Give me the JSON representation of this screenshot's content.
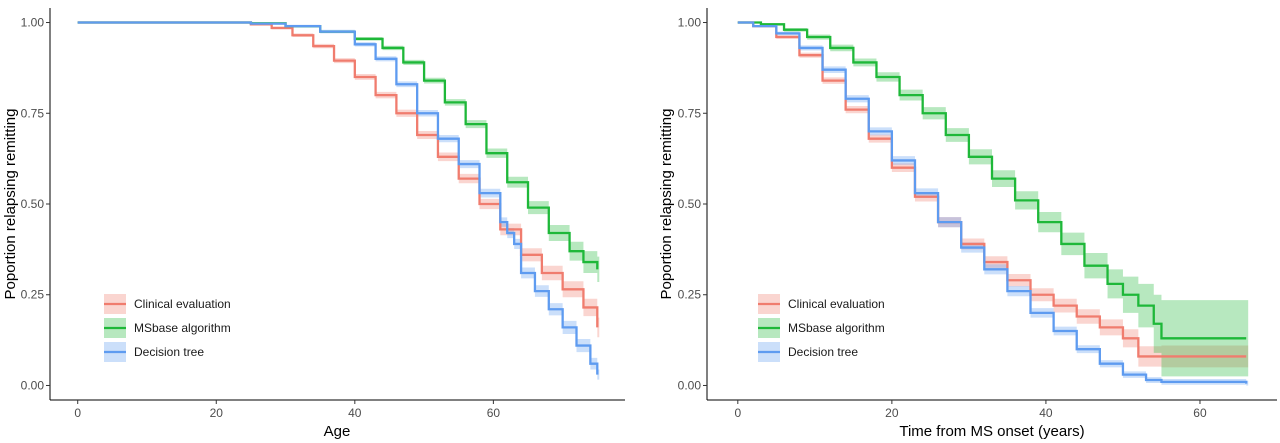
{
  "colors": {
    "clinical": "#F07C6E",
    "msbase": "#1EB839",
    "tree": "#5E9BF0"
  },
  "chart_data": [
    {
      "type": "line",
      "xlabel": "Age",
      "ylabel": "Poportion relapsing remitting",
      "xlim": [
        -4,
        79
      ],
      "ylim": [
        -0.04,
        1.04
      ],
      "x_ticks": [
        0,
        20,
        40,
        60
      ],
      "y_ticks": [
        0.0,
        0.25,
        0.5,
        0.75,
        1.0
      ],
      "x_tick_labels": [
        "0",
        "20",
        "40",
        "60"
      ],
      "y_tick_labels": [
        "0.00",
        "0.25",
        "0.50",
        "0.75",
        "1.00"
      ],
      "grid": false,
      "legend": "bottom-left",
      "series": [
        {
          "name": "Clinical evaluation",
          "color_key": "clinical",
          "x": [
            0,
            20,
            25,
            28,
            31,
            34,
            37,
            40,
            43,
            46,
            49,
            52,
            55,
            58,
            61,
            64,
            67,
            70,
            73,
            75
          ],
          "y": [
            1.0,
            1.0,
            0.995,
            0.985,
            0.965,
            0.935,
            0.895,
            0.85,
            0.8,
            0.75,
            0.69,
            0.63,
            0.57,
            0.5,
            0.43,
            0.36,
            0.31,
            0.265,
            0.215,
            0.16
          ],
          "ci_width": [
            0,
            0,
            0.003,
            0.004,
            0.005,
            0.006,
            0.007,
            0.008,
            0.009,
            0.01,
            0.011,
            0.012,
            0.013,
            0.014,
            0.016,
            0.018,
            0.02,
            0.022,
            0.024,
            0.027
          ]
        },
        {
          "name": "MSbase algorithm",
          "color_key": "msbase",
          "x": [
            0,
            20,
            25,
            30,
            35,
            40,
            44,
            47,
            50,
            53,
            56,
            59,
            62,
            65,
            68,
            71,
            73,
            75
          ],
          "y": [
            1.0,
            1.0,
            0.998,
            0.99,
            0.975,
            0.955,
            0.93,
            0.89,
            0.84,
            0.78,
            0.72,
            0.64,
            0.56,
            0.49,
            0.42,
            0.37,
            0.34,
            0.32
          ],
          "ci_width": [
            0,
            0,
            0.002,
            0.003,
            0.004,
            0.005,
            0.006,
            0.007,
            0.008,
            0.009,
            0.011,
            0.013,
            0.015,
            0.018,
            0.022,
            0.026,
            0.03,
            0.035
          ]
        },
        {
          "name": "Decision tree",
          "color_key": "tree",
          "x": [
            0,
            20,
            25,
            30,
            35,
            40,
            43,
            46,
            49,
            52,
            55,
            58,
            61,
            62,
            63,
            64,
            66,
            68,
            70,
            72,
            74,
            75
          ],
          "y": [
            1.0,
            1.0,
            0.997,
            0.99,
            0.975,
            0.94,
            0.9,
            0.83,
            0.75,
            0.68,
            0.61,
            0.53,
            0.45,
            0.42,
            0.39,
            0.31,
            0.26,
            0.21,
            0.16,
            0.11,
            0.06,
            0.03
          ],
          "ci_width": [
            0,
            0,
            0.003,
            0.004,
            0.005,
            0.006,
            0.007,
            0.008,
            0.009,
            0.01,
            0.011,
            0.012,
            0.013,
            0.014,
            0.014,
            0.015,
            0.016,
            0.017,
            0.018,
            0.018,
            0.016,
            0.014
          ]
        }
      ]
    },
    {
      "type": "line",
      "xlabel": "Time from MS onset (years)",
      "ylabel": "Poportion relapsing remitting",
      "xlim": [
        -4,
        70
      ],
      "ylim": [
        -0.04,
        1.04
      ],
      "x_ticks": [
        0,
        20,
        40,
        60
      ],
      "y_ticks": [
        0.0,
        0.25,
        0.5,
        0.75,
        1.0
      ],
      "x_tick_labels": [
        "0",
        "20",
        "40",
        "60"
      ],
      "y_tick_labels": [
        "0.00",
        "0.25",
        "0.50",
        "0.75",
        "1.00"
      ],
      "grid": false,
      "legend": "bottom-left",
      "series": [
        {
          "name": "Clinical evaluation",
          "color_key": "clinical",
          "x": [
            0,
            2,
            5,
            8,
            11,
            14,
            17,
            20,
            23,
            26,
            29,
            32,
            35,
            38,
            41,
            44,
            47,
            50,
            52,
            55,
            60,
            66
          ],
          "y": [
            1.0,
            0.99,
            0.96,
            0.91,
            0.84,
            0.76,
            0.68,
            0.6,
            0.52,
            0.45,
            0.39,
            0.34,
            0.29,
            0.25,
            0.22,
            0.19,
            0.16,
            0.13,
            0.08,
            0.08,
            0.08,
            0.08
          ],
          "ci_width": [
            0,
            0.003,
            0.005,
            0.007,
            0.009,
            0.01,
            0.011,
            0.012,
            0.013,
            0.014,
            0.015,
            0.016,
            0.017,
            0.018,
            0.019,
            0.02,
            0.022,
            0.025,
            0.028,
            0.03,
            0.03,
            0.03
          ]
        },
        {
          "name": "MSbase algorithm",
          "color_key": "msbase",
          "x": [
            0,
            3,
            6,
            9,
            12,
            15,
            18,
            21,
            24,
            27,
            30,
            33,
            36,
            39,
            42,
            45,
            48,
            50,
            52,
            54,
            55,
            60,
            66
          ],
          "y": [
            1.0,
            0.995,
            0.98,
            0.96,
            0.93,
            0.89,
            0.85,
            0.8,
            0.75,
            0.69,
            0.63,
            0.57,
            0.51,
            0.45,
            0.39,
            0.33,
            0.28,
            0.25,
            0.22,
            0.17,
            0.13,
            0.13,
            0.13
          ],
          "ci_width": [
            0,
            0.003,
            0.005,
            0.007,
            0.009,
            0.011,
            0.013,
            0.015,
            0.017,
            0.019,
            0.021,
            0.023,
            0.025,
            0.028,
            0.031,
            0.035,
            0.04,
            0.05,
            0.06,
            0.08,
            0.105,
            0.105,
            0.105
          ]
        },
        {
          "name": "Decision tree",
          "color_key": "tree",
          "x": [
            0,
            2,
            5,
            8,
            11,
            14,
            17,
            20,
            23,
            26,
            29,
            32,
            35,
            38,
            41,
            44,
            47,
            50,
            53,
            55,
            60,
            66
          ],
          "y": [
            1.0,
            0.99,
            0.97,
            0.93,
            0.87,
            0.79,
            0.7,
            0.62,
            0.53,
            0.45,
            0.38,
            0.32,
            0.26,
            0.2,
            0.15,
            0.1,
            0.06,
            0.03,
            0.015,
            0.01,
            0.01,
            0.005
          ],
          "ci_width": [
            0,
            0.003,
            0.005,
            0.007,
            0.009,
            0.01,
            0.011,
            0.012,
            0.013,
            0.014,
            0.014,
            0.014,
            0.014,
            0.013,
            0.012,
            0.011,
            0.01,
            0.009,
            0.008,
            0.008,
            0.008,
            0.008
          ]
        }
      ]
    }
  ]
}
